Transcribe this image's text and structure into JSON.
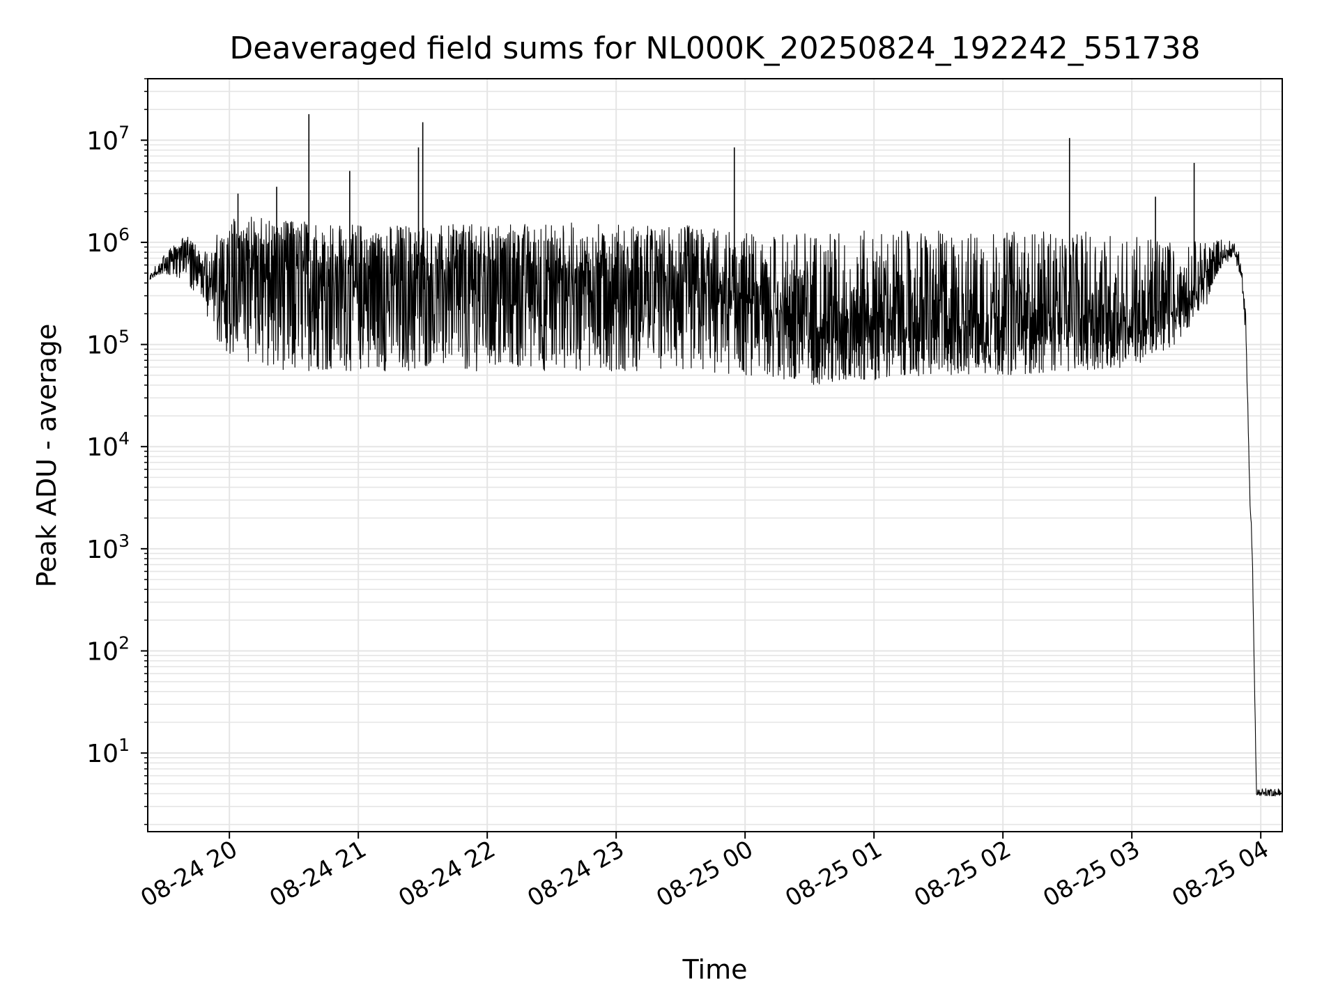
{
  "chart_data": {
    "type": "line",
    "title": "Deaveraged field sums for NL000K_20250824_192242_551738",
    "xlabel": "Time",
    "ylabel": "Peak ADU - average",
    "yscale": "log",
    "xlim": [
      "2025-08-24 19:22",
      "2025-08-25 04:10"
    ],
    "ylim": [
      1.7,
      40000000
    ],
    "grid": true,
    "x_ticks": [
      "08-24 20",
      "08-24 21",
      "08-24 22",
      "08-24 23",
      "08-25 00",
      "08-25 01",
      "08-25 02",
      "08-25 03",
      "08-25 04"
    ],
    "y_ticks": [
      {
        "base": "10",
        "exp": "1",
        "value": 10
      },
      {
        "base": "10",
        "exp": "2",
        "value": 100
      },
      {
        "base": "10",
        "exp": "3",
        "value": 1000
      },
      {
        "base": "10",
        "exp": "4",
        "value": 10000
      },
      {
        "base": "10",
        "exp": "5",
        "value": 100000
      },
      {
        "base": "10",
        "exp": "6",
        "value": 1000000
      },
      {
        "base": "10",
        "exp": "7",
        "value": 10000000
      }
    ],
    "line_color": "#000000",
    "grid_color": "#e5e5e5",
    "series": [
      {
        "x": [
          "2025-08-24 19:23",
          "2025-08-24 19:30",
          "2025-08-24 19:40",
          "2025-08-24 19:45",
          "2025-08-24 19:50",
          "2025-08-24 19:55",
          "2025-08-24 20:00",
          "2025-08-24 20:15",
          "2025-08-24 20:30",
          "2025-08-24 20:45",
          "2025-08-24 21:00",
          "2025-08-24 21:15",
          "2025-08-24 21:30",
          "2025-08-24 22:00",
          "2025-08-24 22:30",
          "2025-08-24 23:00",
          "2025-08-24 23:30",
          "2025-08-25 00:00",
          "2025-08-25 00:30",
          "2025-08-25 01:00",
          "2025-08-25 01:30",
          "2025-08-25 02:00",
          "2025-08-25 02:30",
          "2025-08-25 03:00",
          "2025-08-25 03:20",
          "2025-08-25 03:35",
          "2025-08-25 03:42",
          "2025-08-25 03:48",
          "2025-08-25 03:51",
          "2025-08-25 03:53",
          "2025-08-25 03:55",
          "2025-08-25 03:56",
          "2025-08-25 03:58",
          "2025-08-25 04:10"
        ],
        "y": [
          450000,
          600000,
          1000000,
          700000,
          450000,
          400000,
          1000000,
          600000,
          700000,
          600000,
          600000,
          550000,
          600000,
          600000,
          550000,
          500000,
          450000,
          300000,
          130000,
          150000,
          130000,
          150000,
          160000,
          120000,
          200000,
          400000,
          700000,
          800000,
          500000,
          150000,
          3000,
          1000,
          4,
          4
        ],
        "low_envelope": [
          430000,
          500000,
          400000,
          300000,
          180000,
          100000,
          80000,
          60000,
          55000,
          55000,
          55000,
          55000,
          55000,
          55000,
          55000,
          55000,
          55000,
          50000,
          40000,
          45000,
          50000,
          50000,
          55000,
          60000,
          100000,
          250000,
          600000,
          700000,
          400000,
          120000,
          2500,
          900,
          3.8,
          3.8
        ],
        "high_envelope": [
          500000,
          800000,
          1200000,
          900000,
          800000,
          1500000,
          1700000,
          1800000,
          1700000,
          1600000,
          1500000,
          1500000,
          1500000,
          1500000,
          1600000,
          1500000,
          1500000,
          1300000,
          1300000,
          1300000,
          1300000,
          1300000,
          1300000,
          1200000,
          1100000,
          1000000,
          1100000,
          1000000,
          700000,
          200000,
          3500,
          1200,
          4.5,
          4.5
        ]
      }
    ],
    "spikes": [
      {
        "x": "2025-08-24 20:04",
        "y": 3000000
      },
      {
        "x": "2025-08-24 20:22",
        "y": 3500000
      },
      {
        "x": "2025-08-24 20:37",
        "y": 18000000
      },
      {
        "x": "2025-08-24 20:56",
        "y": 5000000
      },
      {
        "x": "2025-08-24 21:28",
        "y": 8500000
      },
      {
        "x": "2025-08-24 21:30",
        "y": 15000000
      },
      {
        "x": "2025-08-24 23:55",
        "y": 8500000
      },
      {
        "x": "2025-08-25 02:31",
        "y": 10500000
      },
      {
        "x": "2025-08-25 03:11",
        "y": 2800000
      },
      {
        "x": "2025-08-25 03:29",
        "y": 6000000
      }
    ]
  }
}
